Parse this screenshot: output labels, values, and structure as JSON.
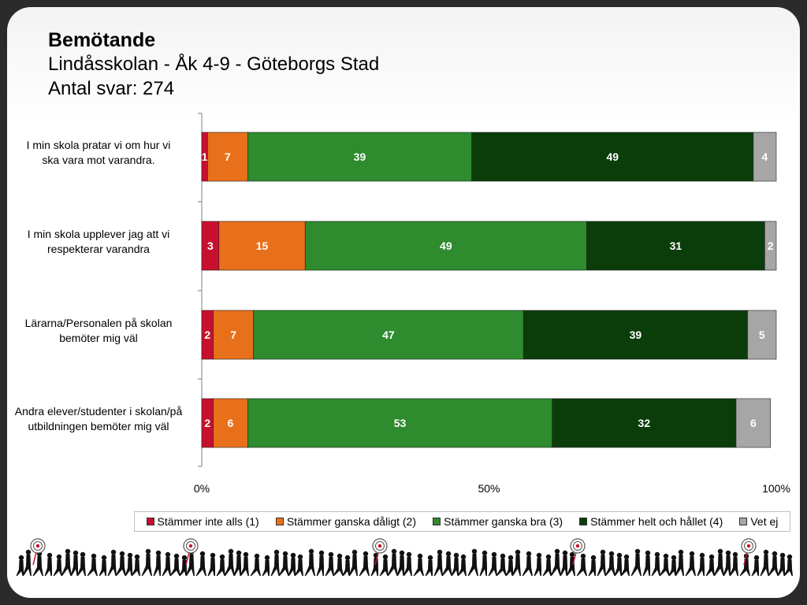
{
  "header": {
    "title": "Bemötande",
    "subtitle": "Lindåsskolan - Åk 4-9 - Göteborgs Stad",
    "responses": "Antal svar: 274"
  },
  "colors": {
    "s1": "#c8102e",
    "s2": "#e8701a",
    "s3": "#2e8b2e",
    "s4": "#0b3d0b",
    "s5": "#a6a6a6"
  },
  "chart_data": {
    "type": "bar",
    "orientation": "horizontal",
    "stacked": true,
    "categories": [
      "I min skola pratar vi om hur vi ska vara mot varandra.",
      "I min skola upplever jag att vi respekterar varandra",
      "Lärarna/Personalen på skolan bemöter mig väl",
      "Andra elever/studenter i skolan/på utbildningen bemöter mig väl"
    ],
    "series": [
      {
        "name": "Stämmer inte alls (1)",
        "values": [
          1,
          3,
          2,
          2
        ],
        "color": "#c8102e"
      },
      {
        "name": "Stämmer ganska dåligt (2)",
        "values": [
          7,
          15,
          7,
          6
        ],
        "color": "#e8701a"
      },
      {
        "name": "Stämmer ganska bra (3)",
        "values": [
          39,
          49,
          47,
          53
        ],
        "color": "#2e8b2e"
      },
      {
        "name": "Stämmer helt och hållet (4)",
        "values": [
          49,
          31,
          39,
          32
        ],
        "color": "#0b3d0b"
      },
      {
        "name": "Vet ej",
        "values": [
          4,
          2,
          5,
          6
        ],
        "color": "#a6a6a6"
      }
    ],
    "x_ticks": [
      "0%",
      "50%",
      "100%"
    ],
    "xlim": [
      0,
      100
    ],
    "legend": "bottom",
    "grid": false
  }
}
